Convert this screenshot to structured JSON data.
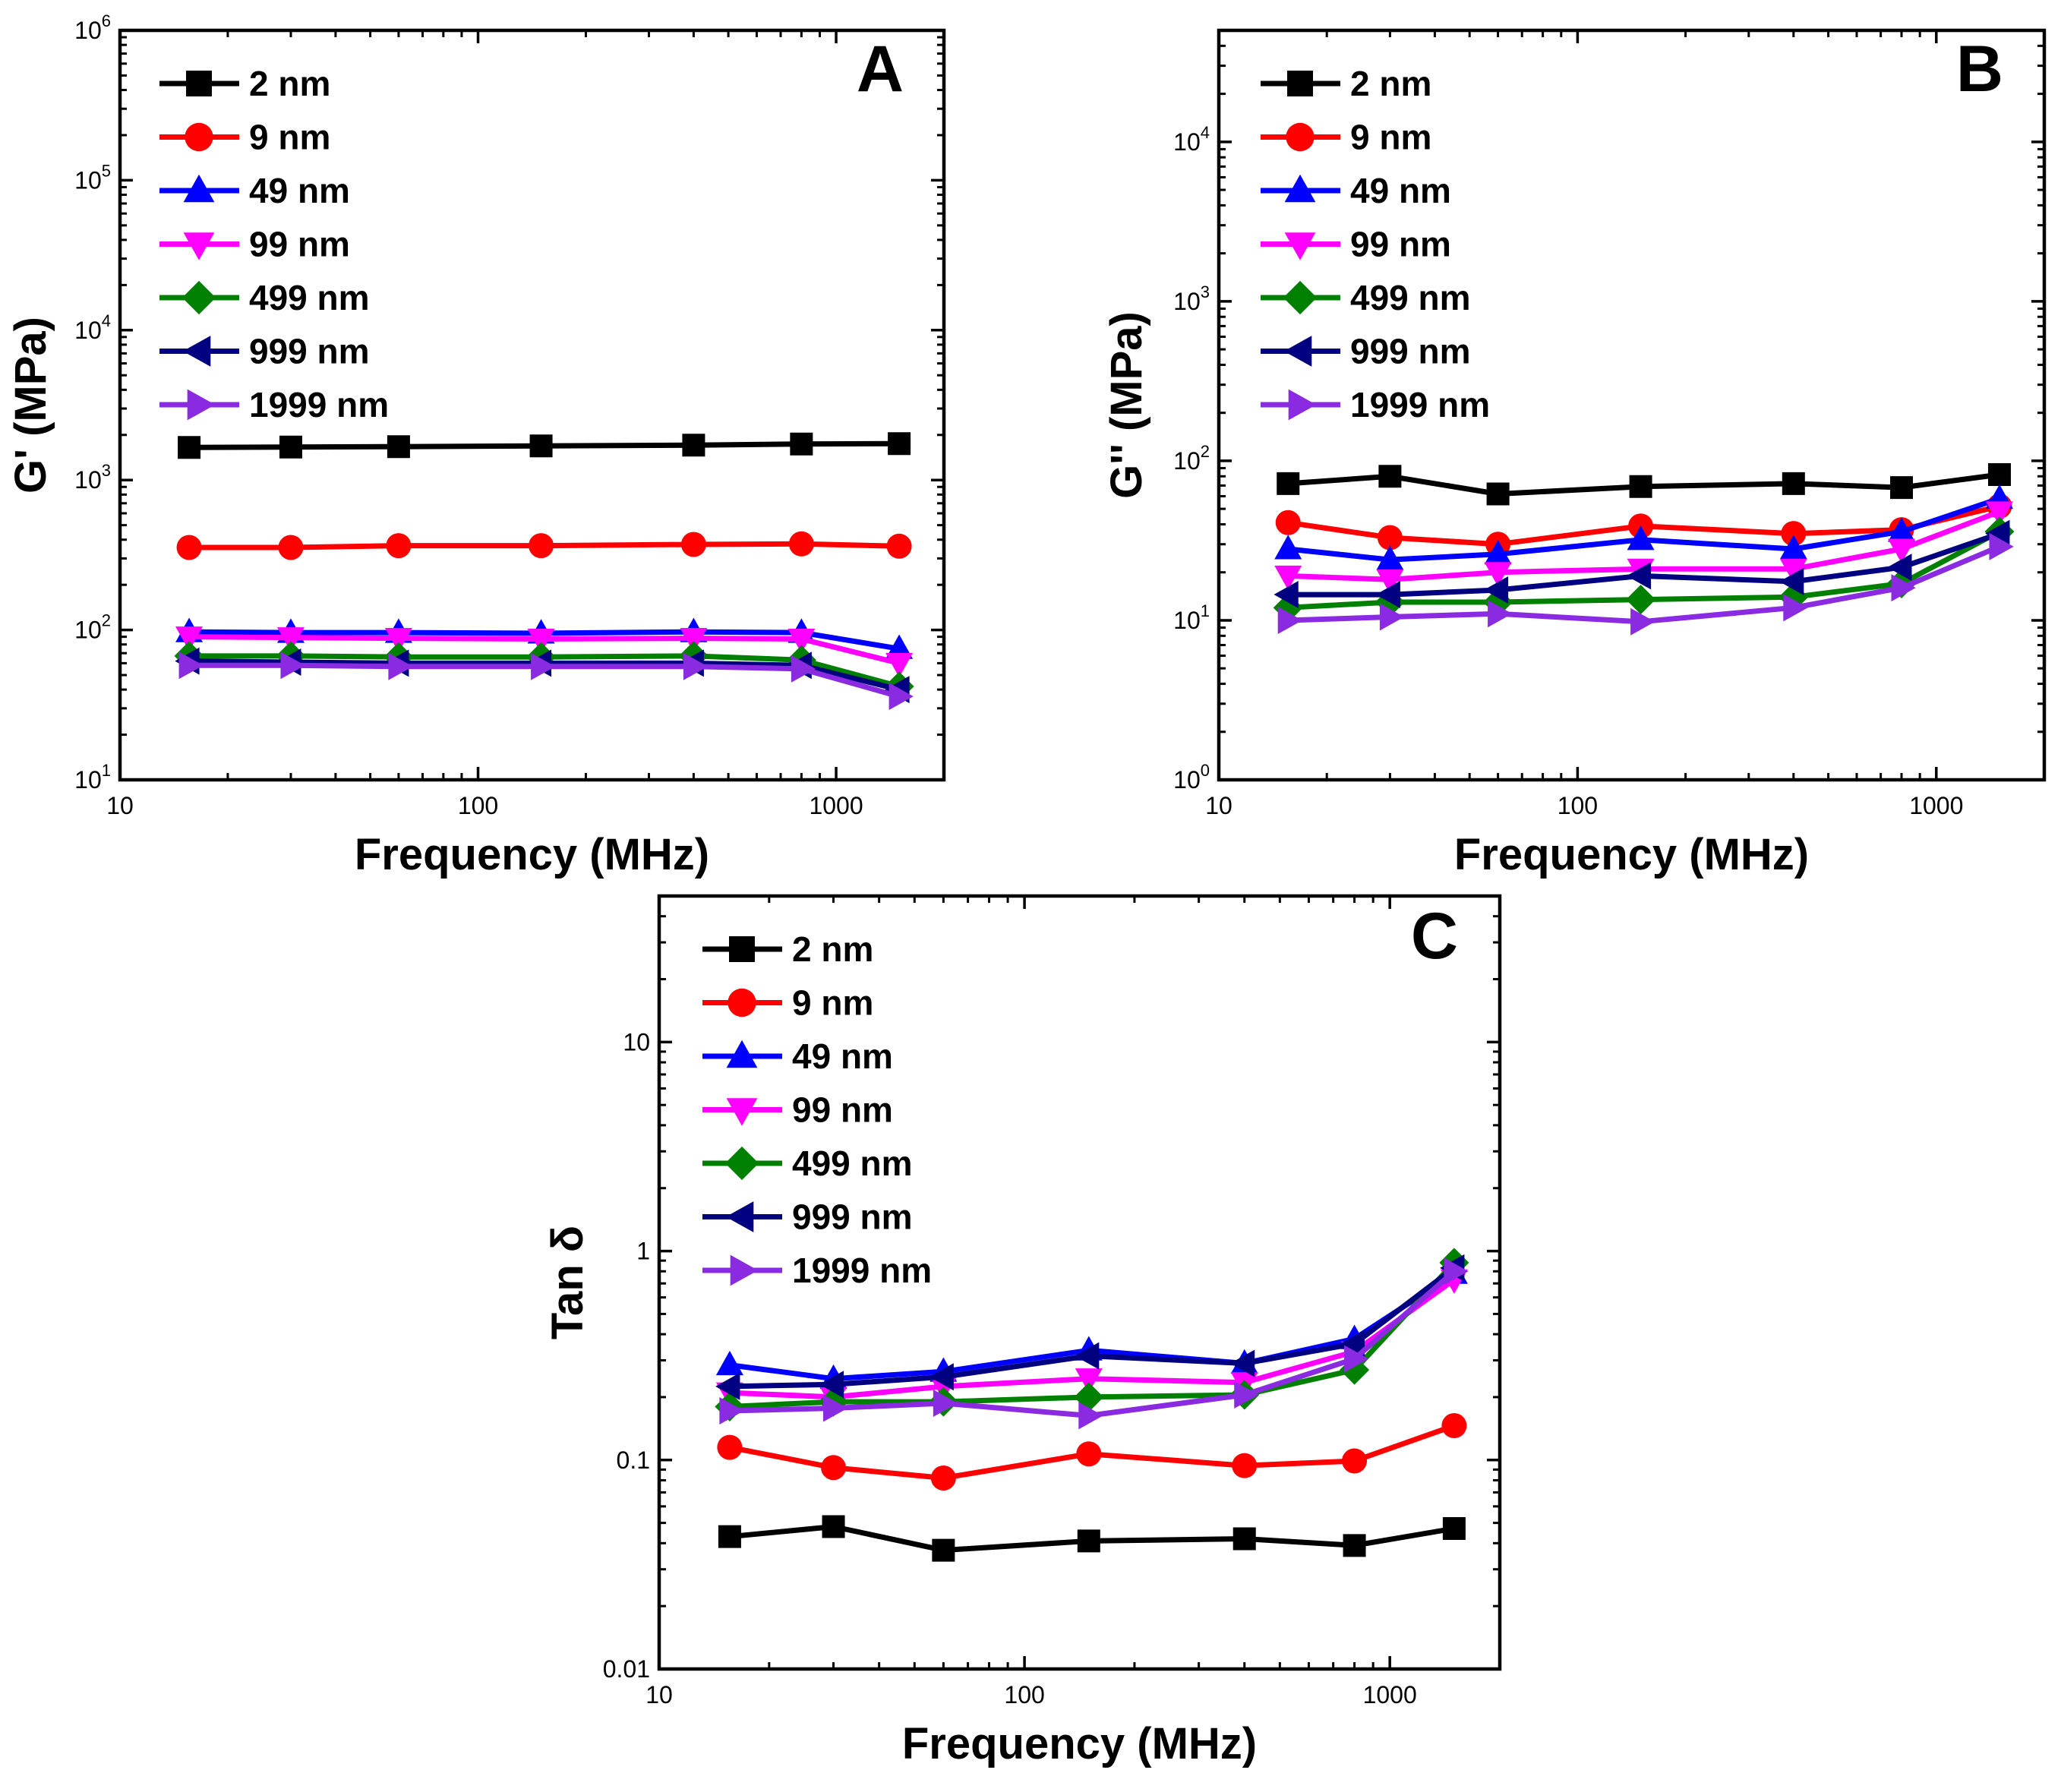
{
  "chart_data": [
    {
      "type": "line",
      "panel": "A",
      "title": "",
      "xlabel": "Frequency (MHz)",
      "ylabel": "G' (MPa)",
      "xscale": "log",
      "yscale": "log",
      "xlim": [
        10,
        2000
      ],
      "ylim": [
        10,
        1000000
      ],
      "x_ticks": [
        10,
        100,
        1000
      ],
      "x_tick_labels": [
        "10",
        "100",
        "1000"
      ],
      "y_ticks": [
        10,
        100,
        1000,
        10000,
        100000,
        1000000
      ],
      "y_tick_labels": [
        {
          "base": "10",
          "exp": "1"
        },
        {
          "base": "10",
          "exp": "2"
        },
        {
          "base": "10",
          "exp": "3"
        },
        {
          "base": "10",
          "exp": "4"
        },
        {
          "base": "10",
          "exp": "5"
        },
        {
          "base": "10",
          "exp": "6"
        }
      ],
      "legend_position": "top-left",
      "x": [
        15.6,
        30,
        60,
        150,
        400,
        800,
        1500
      ],
      "series": [
        {
          "name": "2 nm",
          "color": "#000000",
          "marker": "square",
          "values": [
            1650,
            1660,
            1670,
            1690,
            1710,
            1740,
            1750
          ]
        },
        {
          "name": "9 nm",
          "color": "#ff0000",
          "marker": "circle",
          "values": [
            355,
            355,
            365,
            365,
            372,
            375,
            362
          ]
        },
        {
          "name": "49 nm",
          "color": "#0000ff",
          "marker": "triangle-up",
          "values": [
            97,
            96,
            96,
            95,
            97,
            96,
            75
          ]
        },
        {
          "name": "99 nm",
          "color": "#ff00ff",
          "marker": "triangle-down",
          "values": [
            90,
            89,
            88,
            87,
            88,
            87,
            60
          ]
        },
        {
          "name": "499 nm",
          "color": "#008000",
          "marker": "diamond",
          "values": [
            67,
            67,
            66,
            66,
            67,
            63,
            42
          ]
        },
        {
          "name": "999 nm",
          "color": "#000080",
          "marker": "triangle-left",
          "values": [
            62,
            61,
            60,
            60,
            60,
            58,
            40
          ]
        },
        {
          "name": "1999 nm",
          "color": "#8a2be2",
          "marker": "triangle-right",
          "values": [
            58,
            58,
            57,
            57,
            57,
            55,
            36
          ]
        }
      ]
    },
    {
      "type": "line",
      "panel": "B",
      "title": "",
      "xlabel": "Frequency (MHz)",
      "ylabel": "G'' (MPa)",
      "xscale": "log",
      "yscale": "log",
      "xlim": [
        10,
        2000
      ],
      "ylim": [
        1,
        50000
      ],
      "x_ticks": [
        10,
        100,
        1000
      ],
      "x_tick_labels": [
        "10",
        "100",
        "1000"
      ],
      "y_ticks": [
        1,
        10,
        100,
        1000,
        10000
      ],
      "y_tick_labels": [
        {
          "base": "10",
          "exp": "0"
        },
        {
          "base": "10",
          "exp": "1"
        },
        {
          "base": "10",
          "exp": "2"
        },
        {
          "base": "10",
          "exp": "3"
        },
        {
          "base": "10",
          "exp": "4"
        }
      ],
      "legend_position": "top-left",
      "x": [
        15.6,
        30,
        60,
        150,
        400,
        800,
        1500
      ],
      "series": [
        {
          "name": "2 nm",
          "color": "#000000",
          "marker": "square",
          "values": [
            72,
            80,
            62,
            69,
            72,
            68,
            82
          ]
        },
        {
          "name": "9 nm",
          "color": "#ff0000",
          "marker": "circle",
          "values": [
            41,
            33,
            30,
            39,
            35,
            37,
            52
          ]
        },
        {
          "name": "49 nm",
          "color": "#0000ff",
          "marker": "triangle-up",
          "values": [
            28,
            24,
            26,
            32,
            28,
            36,
            58
          ]
        },
        {
          "name": "99 nm",
          "color": "#ff00ff",
          "marker": "triangle-down",
          "values": [
            19,
            18,
            20,
            21,
            21,
            28,
            48
          ]
        },
        {
          "name": "499 nm",
          "color": "#008000",
          "marker": "diamond",
          "values": [
            12,
            13,
            13,
            13.5,
            14,
            17,
            36
          ]
        },
        {
          "name": "999 nm",
          "color": "#000080",
          "marker": "triangle-left",
          "values": [
            14.5,
            14.5,
            15.5,
            19,
            17.5,
            21.5,
            35
          ]
        },
        {
          "name": "1999 nm",
          "color": "#8a2be2",
          "marker": "triangle-right",
          "values": [
            10,
            10.5,
            11,
            9.8,
            12,
            16,
            29
          ]
        }
      ]
    },
    {
      "type": "line",
      "panel": "C",
      "title": "",
      "xlabel": "Frequency (MHz)",
      "ylabel": "Tan δ",
      "xscale": "log",
      "yscale": "log",
      "xlim": [
        10,
        2000
      ],
      "ylim": [
        0.01,
        50
      ],
      "x_ticks": [
        10,
        100,
        1000
      ],
      "x_tick_labels": [
        "10",
        "100",
        "1000"
      ],
      "y_ticks": [
        0.01,
        0.1,
        1,
        10
      ],
      "y_tick_labels": [
        "0.01",
        "0.1",
        "1",
        "10"
      ],
      "legend_position": "top-left",
      "x": [
        15.6,
        30,
        60,
        150,
        400,
        800,
        1500
      ],
      "series": [
        {
          "name": "2 nm",
          "color": "#000000",
          "marker": "square",
          "values": [
            0.043,
            0.048,
            0.037,
            0.041,
            0.042,
            0.039,
            0.047
          ]
        },
        {
          "name": "9 nm",
          "color": "#ff0000",
          "marker": "circle",
          "values": [
            0.115,
            0.092,
            0.082,
            0.107,
            0.094,
            0.099,
            0.146
          ]
        },
        {
          "name": "49 nm",
          "color": "#0000ff",
          "marker": "triangle-up",
          "values": [
            0.285,
            0.245,
            0.265,
            0.335,
            0.29,
            0.38,
            0.78
          ]
        },
        {
          "name": "99 nm",
          "color": "#ff00ff",
          "marker": "triangle-down",
          "values": [
            0.21,
            0.2,
            0.225,
            0.245,
            0.235,
            0.33,
            0.73
          ]
        },
        {
          "name": "499 nm",
          "color": "#008000",
          "marker": "diamond",
          "values": [
            0.18,
            0.19,
            0.19,
            0.2,
            0.205,
            0.27,
            0.88
          ]
        },
        {
          "name": "999 nm",
          "color": "#000080",
          "marker": "triangle-left",
          "values": [
            0.225,
            0.23,
            0.25,
            0.315,
            0.29,
            0.36,
            0.83
          ]
        },
        {
          "name": "1999 nm",
          "color": "#8a2be2",
          "marker": "triangle-right",
          "values": [
            0.172,
            0.177,
            0.187,
            0.163,
            0.205,
            0.305,
            0.8
          ]
        }
      ]
    }
  ]
}
